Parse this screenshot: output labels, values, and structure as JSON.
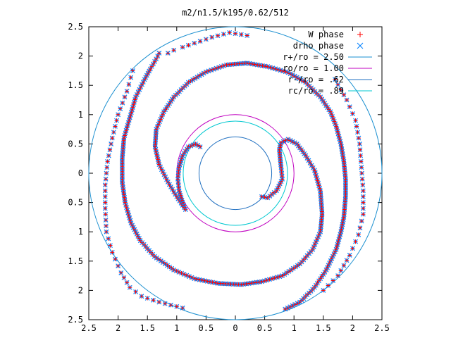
{
  "chart_data": {
    "type": "scatter",
    "title": "m2/n1.5/k195/0.62/512",
    "xlabel": "",
    "ylabel": "",
    "xlim": [
      -2.5,
      2.5
    ],
    "ylim": [
      -2.5,
      2.5
    ],
    "x_tick_labels": [
      "2.5",
      "2",
      "1.5",
      "1",
      "0.5",
      "0",
      "0.5",
      "1",
      "1.5",
      "2",
      "2.5"
    ],
    "y_tick_labels": [
      "2.5",
      "2",
      "1.5",
      "1",
      "0.5",
      "0",
      "0.5",
      "1",
      "1.5",
      "2",
      "2.5"
    ],
    "grid": false,
    "legend_position": "top-right",
    "series": [
      {
        "name": "W phase",
        "kind": "points",
        "marker": "+",
        "color": "#ff0000"
      },
      {
        "name": "drho phase",
        "kind": "points",
        "marker": "x",
        "color": "#0080ff"
      },
      {
        "name": "r+/ro = 2.50",
        "kind": "circle",
        "radius": 2.5,
        "color": "#1a8fd0"
      },
      {
        "name": "ro/ro = 1.00",
        "kind": "circle",
        "radius": 1.0,
        "color": "#c000c0"
      },
      {
        "name": "r-/ro = .62",
        "kind": "circle",
        "radius": 0.62,
        "color": "#1f6fc0"
      },
      {
        "name": "rc/ro = .89",
        "kind": "circle",
        "radius": 0.89,
        "color": "#00c8d0"
      }
    ],
    "spiral_arms": [
      {
        "name": "inner-left-arm",
        "points": [
          [
            -0.6,
            0.45
          ],
          [
            -0.68,
            0.5
          ],
          [
            -0.8,
            0.45
          ],
          [
            -0.9,
            0.3
          ],
          [
            -0.96,
            0.1
          ],
          [
            -0.98,
            -0.1
          ],
          [
            -0.96,
            -0.3
          ],
          [
            -0.9,
            -0.5
          ],
          [
            -0.85,
            -0.62
          ],
          [
            -1.0,
            -0.4
          ],
          [
            -1.15,
            -0.15
          ],
          [
            -1.3,
            0.15
          ],
          [
            -1.37,
            0.45
          ],
          [
            -1.35,
            0.75
          ],
          [
            -1.22,
            1.05
          ],
          [
            -1.05,
            1.3
          ],
          [
            -0.8,
            1.55
          ],
          [
            -0.5,
            1.73
          ],
          [
            -0.15,
            1.85
          ],
          [
            0.2,
            1.88
          ],
          [
            0.55,
            1.82
          ],
          [
            0.9,
            1.72
          ],
          [
            1.2,
            1.55
          ],
          [
            1.45,
            1.3
          ],
          [
            1.62,
            1.05
          ],
          [
            1.72,
            0.8
          ],
          [
            1.8,
            0.5
          ],
          [
            1.85,
            0.2
          ],
          [
            1.88,
            -0.1
          ],
          [
            1.88,
            -0.4
          ],
          [
            1.85,
            -0.75
          ],
          [
            1.8,
            -1.0
          ],
          [
            1.72,
            -1.3
          ],
          [
            1.55,
            -1.65
          ],
          [
            1.35,
            -1.95
          ],
          [
            1.1,
            -2.2
          ],
          [
            0.85,
            -2.32
          ]
        ]
      },
      {
        "name": "inner-right-arm",
        "points": [
          [
            0.45,
            -0.4
          ],
          [
            0.55,
            -0.42
          ],
          [
            0.7,
            -0.3
          ],
          [
            0.8,
            -0.1
          ],
          [
            0.78,
            0.1
          ],
          [
            0.75,
            0.4
          ],
          [
            0.78,
            0.52
          ],
          [
            0.9,
            0.58
          ],
          [
            1.05,
            0.5
          ],
          [
            1.2,
            0.3
          ],
          [
            1.35,
            0.05
          ],
          [
            1.45,
            -0.3
          ],
          [
            1.48,
            -0.7
          ],
          [
            1.45,
            -1.0
          ],
          [
            1.32,
            -1.3
          ],
          [
            1.1,
            -1.55
          ],
          [
            0.8,
            -1.75
          ],
          [
            0.45,
            -1.85
          ],
          [
            0.1,
            -1.9
          ],
          [
            -0.3,
            -1.88
          ],
          [
            -0.7,
            -1.8
          ],
          [
            -1.05,
            -1.65
          ],
          [
            -1.38,
            -1.42
          ],
          [
            -1.62,
            -1.15
          ],
          [
            -1.78,
            -0.85
          ],
          [
            -1.88,
            -0.5
          ],
          [
            -1.93,
            -0.15
          ],
          [
            -1.93,
            0.25
          ],
          [
            -1.9,
            0.6
          ],
          [
            -1.8,
            0.95
          ],
          [
            -1.7,
            1.3
          ],
          [
            -1.55,
            1.6
          ],
          [
            -1.45,
            1.78
          ],
          [
            -1.35,
            1.95
          ],
          [
            -1.3,
            2.05
          ]
        ]
      },
      {
        "name": "outer-arm-upper",
        "points": [
          [
            -1.15,
            2.05
          ],
          [
            -1.05,
            2.1
          ],
          [
            -0.9,
            2.15
          ],
          [
            -0.7,
            2.22
          ],
          [
            -0.4,
            2.32
          ],
          [
            -0.1,
            2.4
          ],
          [
            0.2,
            2.35
          ]
        ]
      },
      {
        "name": "outer-arm-left",
        "points": [
          [
            -1.75,
            1.75
          ],
          [
            -1.85,
            1.4
          ],
          [
            -2.0,
            1.0
          ],
          [
            -2.1,
            0.6
          ],
          [
            -2.18,
            0.2
          ],
          [
            -2.22,
            -0.2
          ],
          [
            -2.22,
            -0.6
          ],
          [
            -2.2,
            -1.0
          ],
          [
            -2.1,
            -1.35
          ],
          [
            -1.95,
            -1.7
          ],
          [
            -1.8,
            -1.95
          ],
          [
            -1.6,
            -2.1
          ],
          [
            -1.3,
            -2.2
          ],
          [
            -0.9,
            -2.3
          ]
        ]
      },
      {
        "name": "outer-arm-right",
        "points": [
          [
            1.7,
            1.6
          ],
          [
            1.9,
            1.25
          ],
          [
            2.05,
            0.9
          ],
          [
            2.12,
            0.5
          ],
          [
            2.15,
            0.1
          ],
          [
            2.18,
            -0.3
          ],
          [
            2.18,
            -0.7
          ],
          [
            2.1,
            -1.05
          ],
          [
            1.95,
            -1.4
          ],
          [
            1.75,
            -1.75
          ],
          [
            1.5,
            -2.0
          ]
        ]
      }
    ]
  },
  "legend": [
    {
      "label": "W phase",
      "kind": "points",
      "marker": "+",
      "color": "#ff0000"
    },
    {
      "label": "drho phase",
      "kind": "points",
      "marker": "x",
      "color": "#0080ff"
    },
    {
      "label": "r+/ro = 2.50",
      "kind": "line",
      "color": "#1a8fd0"
    },
    {
      "label": "ro/ro = 1.00",
      "kind": "line",
      "color": "#c000c0"
    },
    {
      "label": "r-/ro = .62",
      "kind": "line",
      "color": "#1f6fc0"
    },
    {
      "label": "rc/ro = .89",
      "kind": "line",
      "color": "#00c8d0"
    }
  ]
}
